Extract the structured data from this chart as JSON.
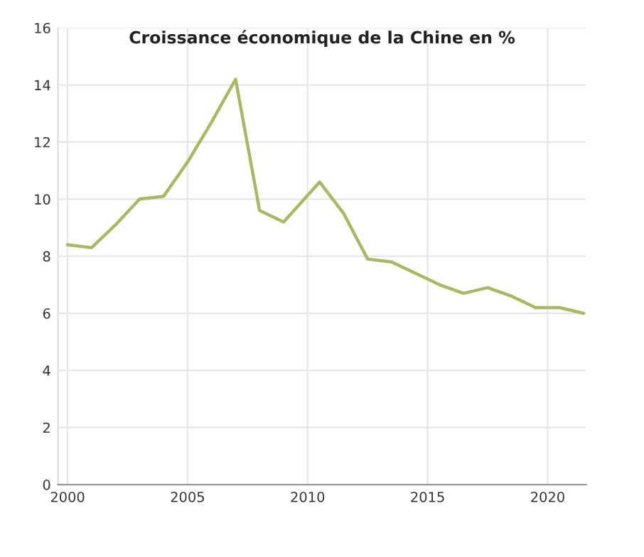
{
  "chart_data": {
    "type": "line",
    "title": "Croissance économique de la Chine en %",
    "x": [
      2000,
      2001,
      2002,
      2003,
      2004,
      2005,
      2006,
      2007,
      2008,
      2009,
      2010.5,
      2011.5,
      2012.5,
      2013.5,
      2014.5,
      2015.5,
      2016.5,
      2017.5,
      2018.5,
      2019.5,
      2020.5,
      2021.5
    ],
    "series": [
      {
        "color": "#a9b865",
        "values": [
          8.4,
          8.3,
          9.1,
          10.0,
          10.1,
          11.3,
          12.7,
          14.2,
          9.6,
          9.2,
          10.6,
          9.5,
          7.9,
          7.8,
          7.4,
          7.0,
          6.7,
          6.9,
          6.6,
          6.2,
          6.2,
          6.0
        ]
      }
    ],
    "xlim": [
      1999.6,
      2021.6
    ],
    "xticks": [
      2000,
      2005,
      2010,
      2015,
      2020
    ],
    "ylim": [
      0,
      16
    ],
    "yticks": [
      0,
      2,
      4,
      6,
      8,
      10,
      12,
      14,
      16
    ],
    "grid": true,
    "line_style": "solid",
    "marker": "none"
  }
}
